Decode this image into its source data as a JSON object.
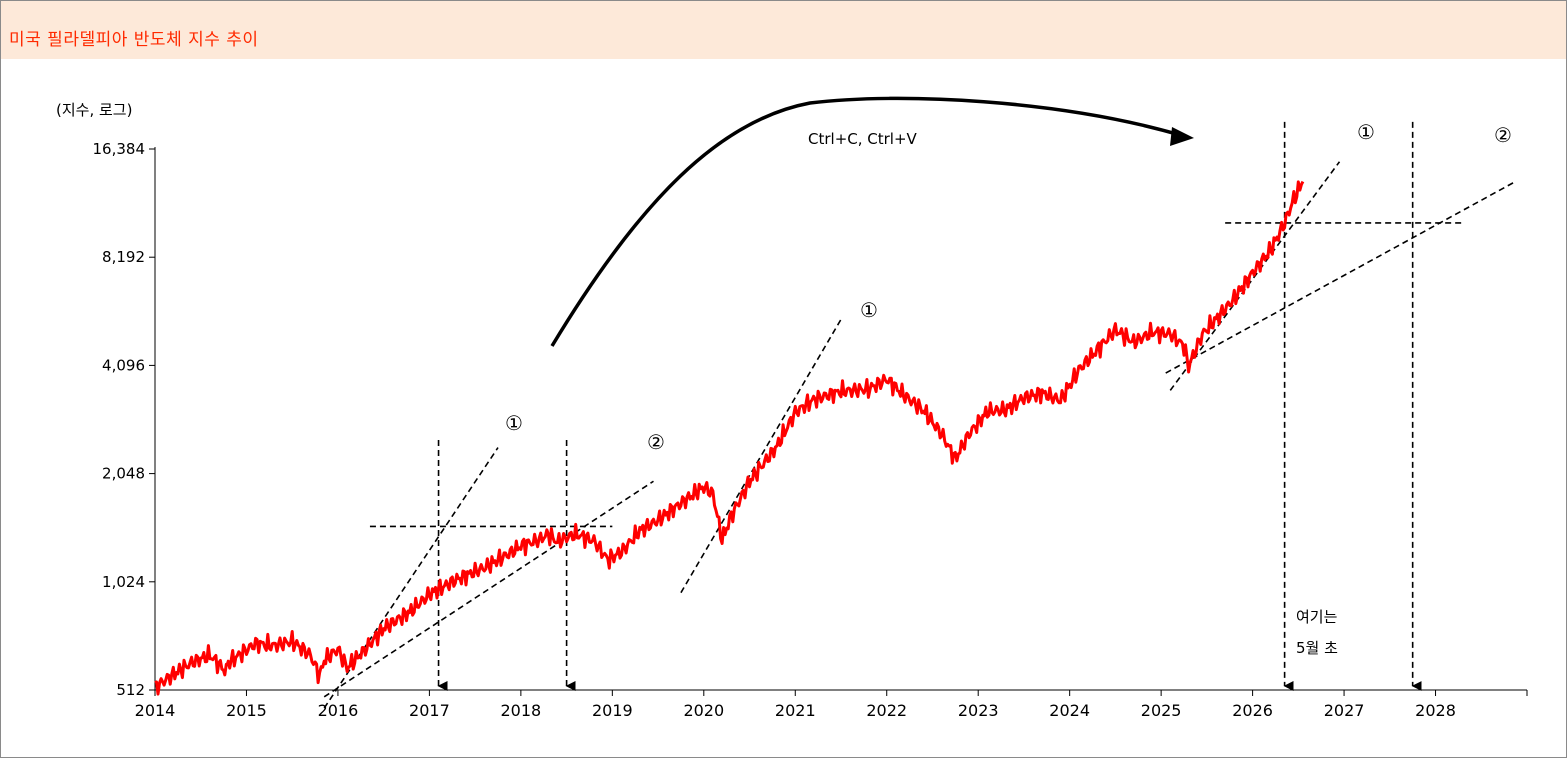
{
  "header": {
    "title": "미국 필라델피아 반도체 지수 추이"
  },
  "colors": {
    "title_bg": "#fde9d9",
    "title_text": "#ff2a00",
    "series": "#ff0000",
    "guides": "#000000"
  },
  "chart_data": {
    "type": "line",
    "title": "미국 필라델피아 반도체 지수 추이",
    "ylabel": "(지수, 로그)",
    "y_scale": "log2",
    "ylim": [
      512,
      16384
    ],
    "xlim": [
      2014,
      2029
    ],
    "y_ticks": [
      {
        "value": 512,
        "label": "512"
      },
      {
        "value": 1024,
        "label": "1,024"
      },
      {
        "value": 2048,
        "label": "2,048"
      },
      {
        "value": 4096,
        "label": "4,096"
      },
      {
        "value": 8192,
        "label": "8,192"
      },
      {
        "value": 16384,
        "label": "16,384"
      }
    ],
    "x_ticks": [
      "2014",
      "2015",
      "2016",
      "2017",
      "2018",
      "2019",
      "2020",
      "2021",
      "2022",
      "2023",
      "2024",
      "2025",
      "2026",
      "2027",
      "2028"
    ],
    "series": [
      {
        "x": [
          2014.0,
          2014.15,
          2014.4,
          2014.6,
          2014.78,
          2014.8,
          2015.1,
          2015.3,
          2015.5,
          2015.7,
          2015.8,
          2015.85,
          2016.0,
          2016.1,
          2016.3,
          2016.5,
          2016.8,
          2017.0,
          2017.3,
          2017.6,
          2017.9,
          2018.0,
          2018.2,
          2018.3,
          2018.4,
          2018.5,
          2018.6,
          2018.8,
          2018.95,
          2019.1,
          2019.3,
          2019.5,
          2019.8,
          2020.0,
          2020.1,
          2020.2,
          2020.3,
          2020.5,
          2020.8,
          2021.0,
          2021.2,
          2021.5,
          2021.8,
          2022.0,
          2022.2,
          2022.4,
          2022.6,
          2022.75,
          2022.9,
          2023.1,
          2023.3,
          2023.5,
          2023.7,
          2023.9,
          2024.1,
          2024.3,
          2024.5,
          2024.7,
          2024.9,
          2025.1,
          2025.25,
          2025.3,
          2025.45,
          2025.6,
          2025.8,
          2026.0,
          2026.2,
          2026.35,
          2026.45,
          2026.55
        ],
        "y": [
          520,
          555,
          610,
          640,
          575,
          610,
          690,
          680,
          700,
          640,
          560,
          620,
          665,
          590,
          665,
          760,
          850,
          945,
          1040,
          1120,
          1240,
          1290,
          1340,
          1390,
          1320,
          1360,
          1390,
          1330,
          1180,
          1240,
          1420,
          1520,
          1730,
          1880,
          1800,
          1340,
          1560,
          1950,
          2440,
          3030,
          3290,
          3470,
          3520,
          3750,
          3370,
          3070,
          2640,
          2250,
          2640,
          3050,
          3080,
          3330,
          3430,
          3270,
          3980,
          4520,
          5150,
          4750,
          5060,
          5010,
          4640,
          4070,
          5000,
          5500,
          6290,
          7420,
          8600,
          10200,
          11900,
          13300
        ]
      }
    ],
    "annotations": {
      "copy_label": "Ctrl+C, Ctrl+V",
      "circle_one": "①",
      "circle_two": "②",
      "note_line1": "여기는",
      "note_line2": "5월 초",
      "trend_lines": [
        {
          "x1": 2015.85,
          "y1": 456,
          "x2": 2017.75,
          "y2": 2420
        },
        {
          "x1": 2015.85,
          "y1": 490,
          "x2": 2019.45,
          "y2": 1950
        },
        {
          "x1": 2019.75,
          "y1": 955,
          "x2": 2021.5,
          "y2": 5500
        },
        {
          "x1": 2025.1,
          "y1": 3490,
          "x2": 2026.95,
          "y2": 15100
        },
        {
          "x1": 2025.05,
          "y1": 3900,
          "x2": 2028.85,
          "y2": 13200
        }
      ],
      "h_lines": [
        {
          "x1": 2016.35,
          "x2": 2019.0,
          "y": 1460
        },
        {
          "x1": 2025.7,
          "x2": 2028.3,
          "y": 10200
        }
      ],
      "v_arrows": [
        {
          "x": 2017.1,
          "y_top": 2540
        },
        {
          "x": 2018.5,
          "y_top": 2540
        },
        {
          "x": 2026.35,
          "y_top": 19500
        },
        {
          "x": 2027.75,
          "y_top": 19500
        }
      ]
    }
  }
}
